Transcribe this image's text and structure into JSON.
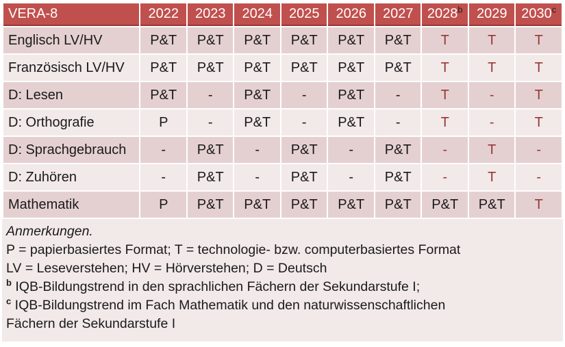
{
  "colors": {
    "header_bg": "#C0504D",
    "header_border": "#963634",
    "band_dark": "#E5D0D1",
    "band_light": "#F2E9E9",
    "accent_text": "#953735"
  },
  "table": {
    "header": {
      "title": "VERA-8",
      "columns": [
        {
          "label": "2022",
          "sup": ""
        },
        {
          "label": "2023",
          "sup": ""
        },
        {
          "label": "2024",
          "sup": ""
        },
        {
          "label": "2025",
          "sup": ""
        },
        {
          "label": "2026",
          "sup": ""
        },
        {
          "label": "2027",
          "sup": ""
        },
        {
          "label": "2028",
          "sup": "b"
        },
        {
          "label": "2029",
          "sup": ""
        },
        {
          "label": "2030",
          "sup": "c"
        }
      ]
    },
    "rows": [
      {
        "label": "Englisch LV/HV",
        "cells": [
          {
            "v": "P&T",
            "red": false
          },
          {
            "v": "P&T",
            "red": false
          },
          {
            "v": "P&T",
            "red": false
          },
          {
            "v": "P&T",
            "red": false
          },
          {
            "v": "P&T",
            "red": false
          },
          {
            "v": "P&T",
            "red": false
          },
          {
            "v": "T",
            "red": true
          },
          {
            "v": "T",
            "red": true
          },
          {
            "v": "T",
            "red": true
          }
        ]
      },
      {
        "label": "Französisch LV/HV",
        "cells": [
          {
            "v": "P&T",
            "red": false
          },
          {
            "v": "P&T",
            "red": false
          },
          {
            "v": "P&T",
            "red": false
          },
          {
            "v": "P&T",
            "red": false
          },
          {
            "v": "P&T",
            "red": false
          },
          {
            "v": "P&T",
            "red": false
          },
          {
            "v": "T",
            "red": true
          },
          {
            "v": "T",
            "red": true
          },
          {
            "v": "T",
            "red": true
          }
        ]
      },
      {
        "label": "D: Lesen",
        "cells": [
          {
            "v": "P&T",
            "red": false
          },
          {
            "v": "-",
            "red": false
          },
          {
            "v": "P&T",
            "red": false
          },
          {
            "v": "-",
            "red": false
          },
          {
            "v": "P&T",
            "red": false
          },
          {
            "v": "-",
            "red": false
          },
          {
            "v": "T",
            "red": true
          },
          {
            "v": "-",
            "red": true
          },
          {
            "v": "T",
            "red": true
          }
        ]
      },
      {
        "label": "D: Orthografie",
        "cells": [
          {
            "v": "P",
            "red": false
          },
          {
            "v": "-",
            "red": false
          },
          {
            "v": "P&T",
            "red": false
          },
          {
            "v": "-",
            "red": false
          },
          {
            "v": "P&T",
            "red": false
          },
          {
            "v": "-",
            "red": false
          },
          {
            "v": "T",
            "red": true
          },
          {
            "v": "-",
            "red": true
          },
          {
            "v": "T",
            "red": true
          }
        ]
      },
      {
        "label": "D: Sprachgebrauch",
        "cells": [
          {
            "v": "-",
            "red": false
          },
          {
            "v": "P&T",
            "red": false
          },
          {
            "v": "-",
            "red": false
          },
          {
            "v": "P&T",
            "red": false
          },
          {
            "v": "-",
            "red": false
          },
          {
            "v": "P&T",
            "red": false
          },
          {
            "v": "-",
            "red": true
          },
          {
            "v": "T",
            "red": true
          },
          {
            "v": "-",
            "red": true
          }
        ]
      },
      {
        "label": "D: Zuhören",
        "cells": [
          {
            "v": "-",
            "red": false
          },
          {
            "v": "P&T",
            "red": false
          },
          {
            "v": "-",
            "red": false
          },
          {
            "v": "P&T",
            "red": false
          },
          {
            "v": "-",
            "red": false
          },
          {
            "v": "P&T",
            "red": false
          },
          {
            "v": "-",
            "red": true
          },
          {
            "v": "T",
            "red": true
          },
          {
            "v": "-",
            "red": true
          }
        ]
      },
      {
        "label": "Mathematik",
        "cells": [
          {
            "v": "P",
            "red": false
          },
          {
            "v": "P&T",
            "red": false
          },
          {
            "v": "P&T",
            "red": false
          },
          {
            "v": "P&T",
            "red": false
          },
          {
            "v": "P&T",
            "red": false
          },
          {
            "v": "P&T",
            "red": false
          },
          {
            "v": "P&T",
            "red": false
          },
          {
            "v": "P&T",
            "red": false
          },
          {
            "v": "T",
            "red": true
          }
        ]
      }
    ]
  },
  "notes": {
    "heading": "Anmerkungen.",
    "lines": [
      {
        "sup": "",
        "text": "P = papierbasiertes Format; T = technologie- bzw. computerbasiertes Format"
      },
      {
        "sup": "",
        "text": "LV = Leseverstehen; HV = Hörverstehen; D = Deutsch"
      },
      {
        "sup": "b",
        "text": "IQB-Bildungstrend in den sprachlichen Fächern der Sekundarstufe I;"
      },
      {
        "sup": "c",
        "text": "IQB-Bildungstrend im Fach Mathematik und den naturwissenschaftlichen"
      },
      {
        "sup": "",
        "text": "Fächern der Sekundarstufe I"
      }
    ]
  }
}
